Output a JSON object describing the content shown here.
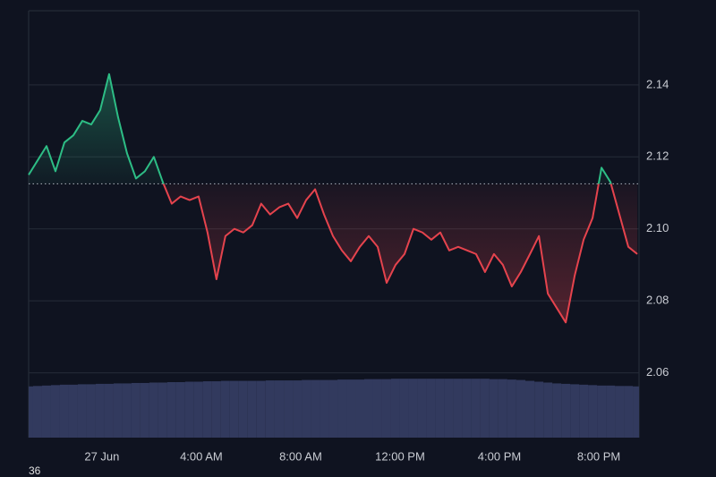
{
  "chart_data": {
    "type": "baseline",
    "x": [
      -2.95,
      -2.59,
      -2.23,
      -1.87,
      -1.51,
      -1.15,
      -0.79,
      -0.43,
      -0.07,
      0.29,
      0.65,
      1.01,
      1.37,
      1.73,
      2.09,
      2.45,
      2.81,
      3.17,
      3.53,
      3.89,
      4.25,
      4.61,
      4.97,
      5.33,
      5.69,
      6.05,
      6.41,
      6.77,
      7.14,
      7.5,
      7.86,
      8.22,
      8.58,
      8.94,
      9.3,
      9.66,
      10.02,
      10.38,
      10.74,
      11.1,
      11.46,
      11.82,
      12.18,
      12.54,
      12.9,
      13.26,
      13.62,
      13.98,
      14.34,
      14.7,
      15.06,
      15.42,
      15.78,
      16.14,
      16.5,
      16.86,
      17.23,
      17.59,
      17.95,
      18.31,
      18.67,
      19.03,
      19.39,
      19.75,
      20.11,
      20.47,
      20.83,
      21.19,
      21.55
    ],
    "series": [
      {
        "values": [
          2.115,
          2.119,
          2.123,
          2.116,
          2.124,
          2.126,
          2.13,
          2.129,
          2.133,
          2.143,
          2.131,
          2.121,
          2.114,
          2.116,
          2.12,
          2.113,
          2.107,
          2.109,
          2.108,
          2.109,
          2.099,
          2.086,
          2.098,
          2.1,
          2.099,
          2.101,
          2.107,
          2.104,
          2.106,
          2.107,
          2.103,
          2.108,
          2.111,
          2.104,
          2.098,
          2.094,
          2.091,
          2.095,
          2.098,
          2.095,
          2.085,
          2.09,
          2.093,
          2.1,
          2.099,
          2.097,
          2.099,
          2.094,
          2.095,
          2.094,
          2.093,
          2.088,
          2.093,
          2.09,
          2.084,
          2.088,
          2.093,
          2.098,
          2.082,
          2.078,
          2.074,
          2.087,
          2.097,
          2.103,
          2.117,
          2.113,
          2.104,
          2.095,
          2.093
        ],
        "color_up": "#2dbd85",
        "color_down": "#e5434d"
      },
      {
        "axis": "y2",
        "color": "#323a5e",
        "values": [
          12.0,
          12.1,
          12.2,
          12.3,
          12.4,
          12.4,
          12.5,
          12.5,
          12.6,
          12.6,
          12.7,
          12.7,
          12.8,
          12.8,
          12.9,
          12.9,
          13.0,
          13.0,
          13.1,
          13.1,
          13.2,
          13.2,
          13.3,
          13.3,
          13.3,
          13.3,
          13.3,
          13.4,
          13.4,
          13.4,
          13.4,
          13.5,
          13.5,
          13.5,
          13.5,
          13.6,
          13.6,
          13.6,
          13.7,
          13.7,
          13.7,
          13.8,
          13.8,
          13.8,
          13.8,
          13.8,
          13.8,
          13.8,
          13.8,
          13.8,
          13.8,
          13.8,
          13.7,
          13.7,
          13.6,
          13.5,
          13.3,
          13.1,
          12.9,
          12.7,
          12.6,
          12.5,
          12.4,
          12.3,
          12.2,
          12.2,
          12.1,
          12.1,
          12.0
        ]
      }
    ],
    "baseline": 2.1125,
    "xlim": [
      -2.95,
      21.62
    ],
    "xticks": [
      {
        "value": 0,
        "label": "27 Jun"
      },
      {
        "value": 4,
        "label": "4:00 AM"
      },
      {
        "value": 8,
        "label": "8:00 AM"
      },
      {
        "value": 12,
        "label": "12:00 PM"
      },
      {
        "value": 16,
        "label": "4:00 PM"
      },
      {
        "value": 20,
        "label": "8:00 PM"
      }
    ],
    "ylim": [
      2.042,
      2.1606
    ],
    "yticks": [
      2.06,
      2.08,
      {
        "value": 2.1,
        "label": "2.10"
      },
      2.12,
      2.14
    ],
    "y2lim": [
      0,
      100
    ],
    "grid": true,
    "corner_text": "36"
  }
}
